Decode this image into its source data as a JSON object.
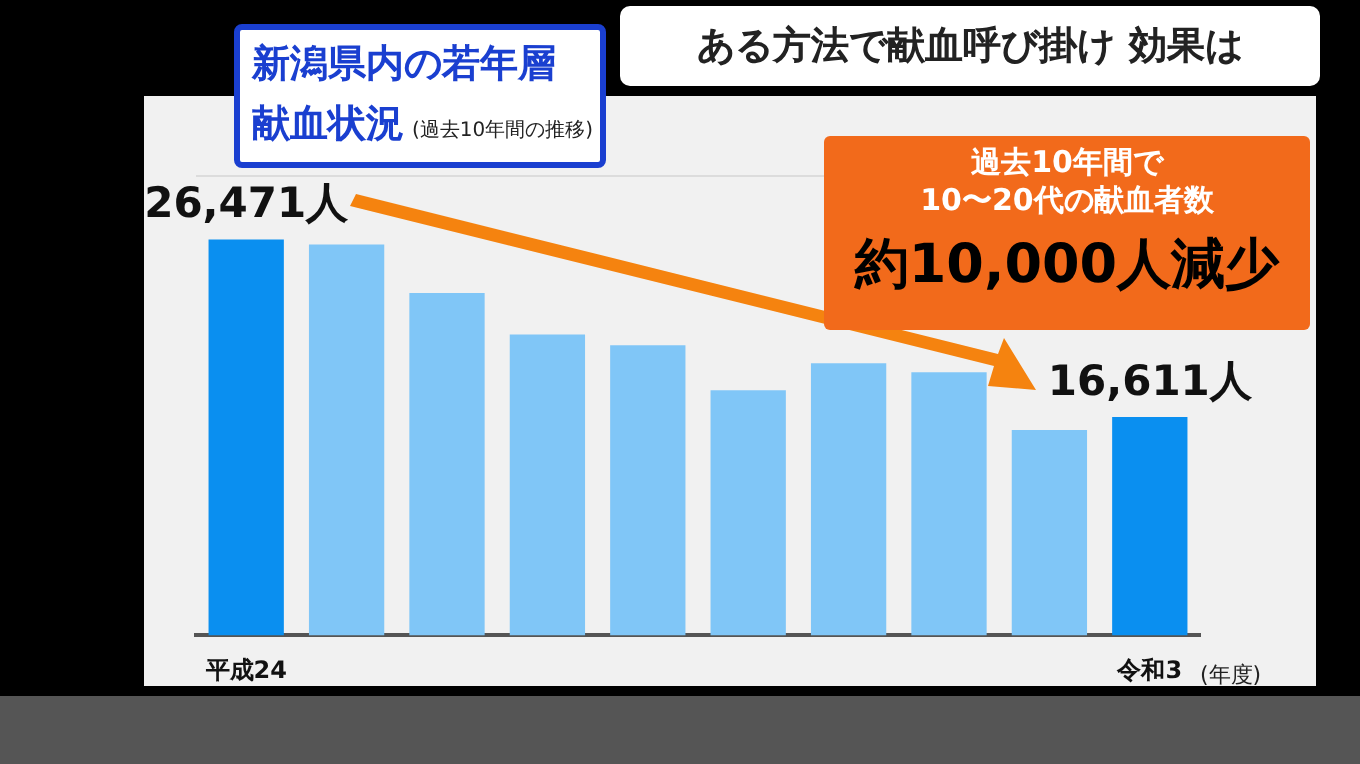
{
  "chart_data": {
    "type": "bar",
    "title": "新潟県内の若年層献血状況",
    "subtitle": "(過去10年間の推移)",
    "xlabel": "(年度)",
    "annotations": [
      "ある方法で献血呼び掛け 効果は",
      "過去10年間で",
      "10〜20代の献血者数",
      "約10,000人減少"
    ],
    "categories": [
      "平成24",
      null,
      null,
      null,
      null,
      null,
      null,
      null,
      null,
      "令和3"
    ],
    "values": [
      26471,
      26200,
      23500,
      21200,
      20600,
      18100,
      19600,
      19100,
      15900,
      16611
    ],
    "value_labels": [
      "26,471人",
      null,
      null,
      null,
      null,
      null,
      null,
      null,
      null,
      "16,611人"
    ],
    "colors": [
      "#0a8ff0",
      "#80c6f7",
      "#80c6f7",
      "#80c6f7",
      "#80c6f7",
      "#80c6f7",
      "#80c6f7",
      "#80c6f7",
      "#80c6f7",
      "#0a8ff0"
    ],
    "ylim": [
      4500,
      30000
    ],
    "tick_labels": "x",
    "legend": false
  }
}
